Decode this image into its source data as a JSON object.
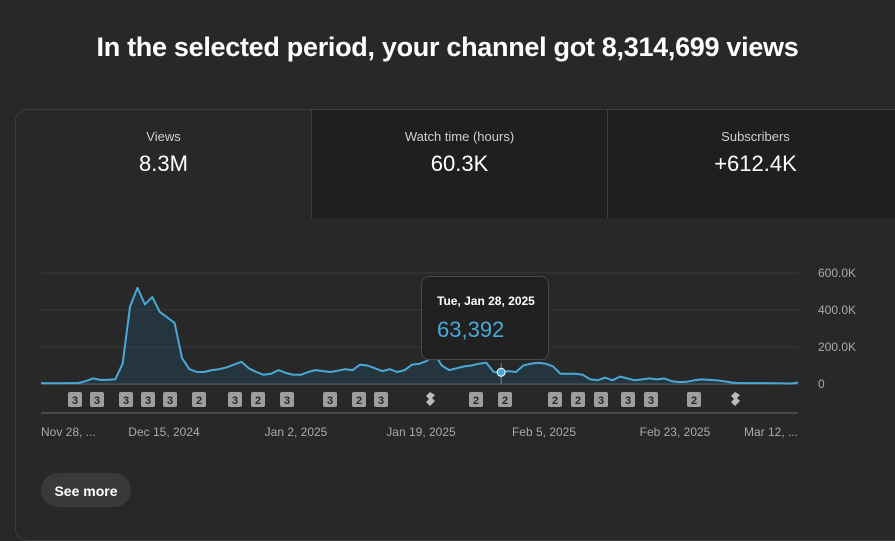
{
  "headline": "In the selected period, your channel got 8,314,699 views",
  "tabs": [
    {
      "label": "Views",
      "value": "8.3M"
    },
    {
      "label": "Watch time (hours)",
      "value": "60.3K"
    },
    {
      "label": "Subscribers",
      "value": "+612.4K"
    }
  ],
  "tooltip": {
    "date": "Tue, Jan 28, 2025",
    "value": "63,392"
  },
  "see_more_label": "See more",
  "colors": {
    "line": "#4aa8d8",
    "accent_fill": "#1f4e63"
  },
  "chart_data": {
    "type": "area",
    "title": "",
    "xlabel": "",
    "ylabel": "",
    "ylim": [
      0,
      600000
    ],
    "y_ticks": [
      {
        "value": 600000,
        "label": "600.0K"
      },
      {
        "value": 400000,
        "label": "400.0K"
      },
      {
        "value": 200000,
        "label": "200.0K"
      },
      {
        "value": 0,
        "label": "0"
      }
    ],
    "x_ticks": [
      "Nov 28, ...",
      "Dec 15, 2024",
      "Jan 2, 2025",
      "Jan 19, 2025",
      "Feb 5, 2025",
      "Feb 23, 2025",
      "Mar 12, ..."
    ],
    "highlight_index": 62,
    "series": [
      {
        "values": [
          5000,
          4000,
          4000,
          5000,
          5000,
          5000,
          15000,
          30000,
          22000,
          22000,
          25000,
          110000,
          420000,
          520000,
          430000,
          470000,
          390000,
          360000,
          330000,
          140000,
          80000,
          65000,
          65000,
          75000,
          80000,
          90000,
          105000,
          120000,
          85000,
          65000,
          50000,
          55000,
          75000,
          60000,
          50000,
          50000,
          65000,
          75000,
          70000,
          65000,
          72000,
          80000,
          75000,
          105000,
          100000,
          85000,
          70000,
          80000,
          65000,
          75000,
          105000,
          110000,
          125000,
          165000,
          100000,
          75000,
          85000,
          95000,
          100000,
          110000,
          115000,
          65000,
          63392,
          70000,
          65000,
          100000,
          110000,
          115000,
          110000,
          95000,
          55000,
          55000,
          55000,
          50000,
          25000,
          20000,
          35000,
          20000,
          40000,
          30000,
          20000,
          25000,
          30000,
          25000,
          30000,
          15000,
          10000,
          12000,
          20000,
          25000,
          22000,
          20000,
          15000,
          8000,
          5000,
          5000,
          5000,
          5000,
          5000,
          4000,
          3000,
          2000,
          8000
        ]
      }
    ],
    "markers": [
      {
        "label": "3"
      },
      {
        "label": "3"
      },
      {
        "label": "3"
      },
      {
        "label": "3"
      },
      {
        "label": "3"
      },
      {
        "label": "2"
      },
      {
        "label": "3"
      },
      {
        "label": "2"
      },
      {
        "label": "3"
      },
      {
        "label": "3"
      },
      {
        "label": "2"
      },
      {
        "label": "3"
      },
      {
        "label": "shorts-icon"
      },
      {
        "label": "2"
      },
      {
        "label": "2"
      },
      {
        "label": "2"
      },
      {
        "label": "2"
      },
      {
        "label": "3"
      },
      {
        "label": "3"
      },
      {
        "label": "3"
      },
      {
        "label": "2"
      },
      {
        "label": "shorts-icon"
      }
    ]
  }
}
